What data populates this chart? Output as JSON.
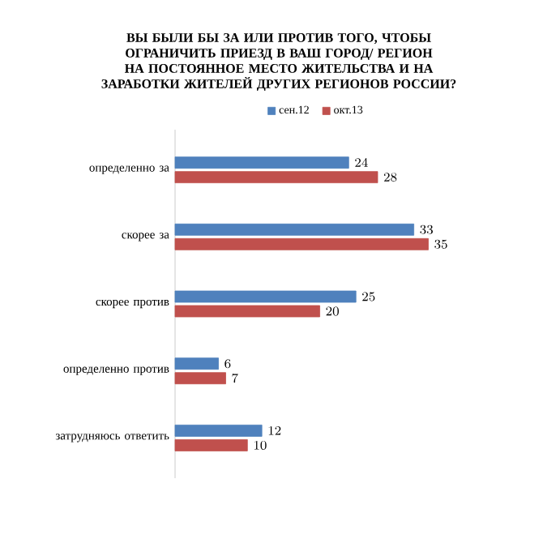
{
  "chart_data": {
    "type": "bar",
    "orientation": "horizontal",
    "title": "ВЫ БЫЛИ БЫ ЗА ИЛИ ПРОТИВ ТОГО, ЧТОБЫ ОГРАНИЧИТЬ ПРИЕЗД В ВАШ ГОРОД/ РЕГИОН НА ПОСТОЯННОЕ МЕСТО ЖИТЕЛЬСТВА И НА ЗАРАБОТКИ ЖИТЕЛЕЙ ДРУГИХ РЕГИОНОВ РОССИИ?",
    "categories": [
      "определенно за",
      "скорее за",
      "скорее против",
      "определенно против",
      "затрудняюсь ответить"
    ],
    "series": [
      {
        "name": "сен.12",
        "color": "#4f81bd",
        "values": [
          24,
          33,
          25,
          6,
          12
        ]
      },
      {
        "name": "окт.13",
        "color": "#c0504d",
        "values": [
          28,
          35,
          20,
          7,
          10
        ]
      }
    ],
    "data_labels": true,
    "legend": "top"
  }
}
